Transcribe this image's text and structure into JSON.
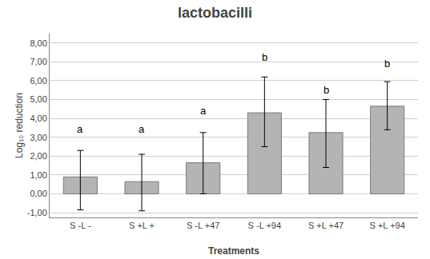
{
  "chart_data": {
    "type": "bar",
    "title": "lactobacilli",
    "xlabel": "Treatments",
    "ylabel": "Log₁₀ reduction",
    "categories": [
      "S -L -",
      "S +L +",
      "S -L +47",
      "S -L +94",
      "S +L +47",
      "S +L +94"
    ],
    "values": [
      0.9,
      0.65,
      1.65,
      4.3,
      3.25,
      4.65
    ],
    "yerr_lower": [
      1.75,
      1.55,
      1.65,
      1.8,
      1.85,
      1.25
    ],
    "yerr_upper": [
      1.4,
      1.45,
      1.6,
      1.9,
      1.75,
      1.3
    ],
    "annotations": [
      {
        "text": "a",
        "x": "S -L -",
        "y": 3.05
      },
      {
        "text": "a",
        "x": "S +L +",
        "y": 3.05
      },
      {
        "text": "a",
        "x": "S -L +47",
        "y": 4.0
      },
      {
        "text": "b",
        "x": "S -L +94",
        "y": 6.85
      },
      {
        "text": "b",
        "x": "S +L +47",
        "y": 5.1
      },
      {
        "text": "b",
        "x": "S +L +94",
        "y": 6.5
      }
    ],
    "color": "#b4b4b4",
    "ylim": [
      -1.25,
      8.5
    ],
    "yticks": [
      {
        "value": -1.0,
        "label": "-1,00"
      },
      {
        "value": 0.0,
        "label": "0,00"
      },
      {
        "value": 1.0,
        "label": "1,00"
      },
      {
        "value": 2.0,
        "label": "2,00"
      },
      {
        "value": 3.0,
        "label": "3,00"
      },
      {
        "value": 4.0,
        "label": "4,00"
      },
      {
        "value": 5.0,
        "label": "5,00"
      },
      {
        "value": 6.0,
        "label": "6,00"
      },
      {
        "value": 7.0,
        "label": "7,00"
      },
      {
        "value": 8.0,
        "label": "8,00"
      }
    ],
    "grid": true
  }
}
